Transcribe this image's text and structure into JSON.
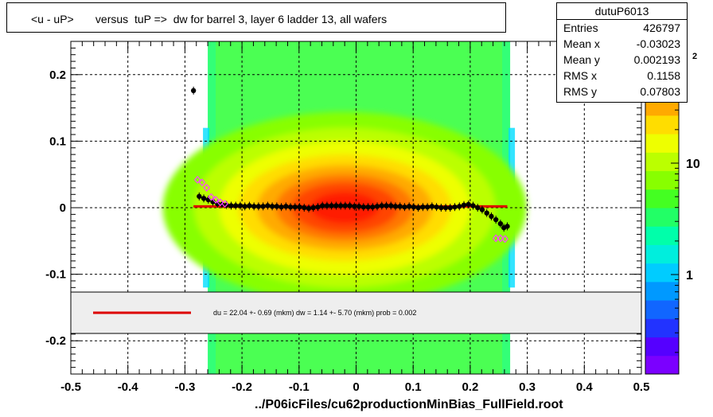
{
  "title": "<u - uP>       versus  tuP =>  dw for barrel 3, layer 6 ladder 13, all wafers",
  "footer": "../P06icFiles/cu62productionMinBias_FullField.root",
  "stats": {
    "name": "dutuP6013",
    "rows": [
      {
        "key": "Entries",
        "value": "426797"
      },
      {
        "key": "Mean x",
        "value": "-0.03023"
      },
      {
        "key": "Mean y",
        "value": "0.002193"
      },
      {
        "key": "RMS x",
        "value": "0.1158"
      },
      {
        "key": "RMS y",
        "value": "0.07803"
      }
    ]
  },
  "legend": {
    "text": "du =   22.04 +-  0.69 (mkm) dw =    1.14 +-  5.70 (mkm) prob = 0.002",
    "line_color": "#dd0000"
  },
  "colorbar": {
    "labels": [
      {
        "text": "1",
        "value": 1
      },
      {
        "text": "10",
        "value": 10
      }
    ],
    "clipped_label": "2"
  },
  "chart_data": {
    "type": "heatmap",
    "xlim": [
      -0.5,
      0.5
    ],
    "ylim": [
      -0.25,
      0.25
    ],
    "x_ticks": [
      -0.5,
      -0.4,
      -0.3,
      -0.2,
      -0.1,
      0,
      0.1,
      0.2,
      0.3,
      0.4,
      0.5
    ],
    "x_tick_labels": [
      "-0.5",
      "-0.4",
      "-0.3",
      "-0.2",
      "-0.1",
      "0",
      "0.1",
      "0.2",
      "0.3",
      "0.4",
      "0.5"
    ],
    "y_ticks": [
      -0.2,
      -0.1,
      0,
      0.1,
      0.2
    ],
    "y_tick_labels": [
      "-0.2",
      "-0.1",
      "0",
      "0.1",
      "0.2"
    ],
    "grid": true,
    "heatmap": {
      "x_range": [
        -0.26,
        0.27
      ],
      "y_range": [
        -0.25,
        0.25
      ],
      "core_center": [
        -0.02,
        0.0
      ],
      "core_sigma": [
        0.11,
        0.04
      ]
    },
    "fit_line": {
      "x": [
        -0.285,
        0.265
      ],
      "y": [
        0.002,
        0.002
      ],
      "color": "#dd0000"
    },
    "series": [
      {
        "marker": "filled-circle",
        "color": "#000000",
        "points": [
          [
            -0.285,
            0.176
          ],
          [
            -0.275,
            0.017
          ],
          [
            -0.267,
            0.014
          ],
          [
            -0.259,
            0.012
          ],
          [
            -0.251,
            0.009
          ],
          [
            -0.243,
            0.006
          ],
          [
            -0.235,
            0.005
          ],
          [
            -0.227,
            0.004
          ],
          [
            -0.219,
            0.003
          ],
          [
            -0.211,
            0.003
          ],
          [
            -0.203,
            0.003
          ],
          [
            -0.195,
            0.002
          ],
          [
            -0.187,
            0.003
          ],
          [
            -0.179,
            0.002
          ],
          [
            -0.171,
            0.002
          ],
          [
            -0.163,
            0.002
          ],
          [
            -0.155,
            0.003
          ],
          [
            -0.147,
            0.002
          ],
          [
            -0.139,
            0.002
          ],
          [
            -0.131,
            0.001
          ],
          [
            -0.123,
            0.002
          ],
          [
            -0.115,
            0.001
          ],
          [
            -0.107,
            0.001
          ],
          [
            -0.099,
            0.001
          ],
          [
            -0.091,
            0.0
          ],
          [
            -0.083,
            -0.001
          ],
          [
            -0.075,
            0.0
          ],
          [
            -0.067,
            0.001
          ],
          [
            -0.059,
            0.003
          ],
          [
            -0.051,
            0.003
          ],
          [
            -0.043,
            0.003
          ],
          [
            -0.035,
            0.003
          ],
          [
            -0.027,
            0.003
          ],
          [
            -0.019,
            0.003
          ],
          [
            -0.011,
            0.003
          ],
          [
            -0.003,
            0.002
          ],
          [
            0.005,
            0.002
          ],
          [
            0.013,
            0.001
          ],
          [
            0.021,
            0.001
          ],
          [
            0.029,
            0.001
          ],
          [
            0.037,
            0.002
          ],
          [
            0.045,
            0.003
          ],
          [
            0.053,
            0.003
          ],
          [
            0.061,
            0.003
          ],
          [
            0.069,
            0.002
          ],
          [
            0.077,
            0.002
          ],
          [
            0.085,
            0.001
          ],
          [
            0.093,
            0.002
          ],
          [
            0.101,
            0.001
          ],
          [
            0.109,
            0.0
          ],
          [
            0.117,
            0.001
          ],
          [
            0.125,
            0.001
          ],
          [
            0.133,
            0.002
          ],
          [
            0.141,
            0.001
          ],
          [
            0.149,
            0.0
          ],
          [
            0.157,
            0.0
          ],
          [
            0.165,
            0.0
          ],
          [
            0.173,
            0.001
          ],
          [
            0.181,
            0.002
          ],
          [
            0.189,
            0.004
          ],
          [
            0.197,
            0.005
          ],
          [
            0.205,
            0.003
          ],
          [
            0.213,
            0.0
          ],
          [
            0.221,
            -0.003
          ],
          [
            0.229,
            -0.008
          ],
          [
            0.237,
            -0.013
          ],
          [
            0.245,
            -0.018
          ],
          [
            0.253,
            -0.024
          ],
          [
            0.259,
            -0.03
          ],
          [
            0.265,
            -0.028
          ]
        ]
      },
      {
        "marker": "open-diamond",
        "color": "#ff44ff",
        "points": [
          [
            -0.278,
            0.042
          ],
          [
            -0.27,
            0.038
          ],
          [
            -0.262,
            0.03
          ],
          [
            -0.254,
            0.016
          ],
          [
            -0.246,
            0.012
          ],
          [
            -0.238,
            0.008
          ],
          [
            -0.23,
            0.006
          ],
          [
            0.245,
            -0.046
          ],
          [
            0.253,
            -0.046
          ],
          [
            0.261,
            -0.047
          ]
        ]
      }
    ]
  }
}
